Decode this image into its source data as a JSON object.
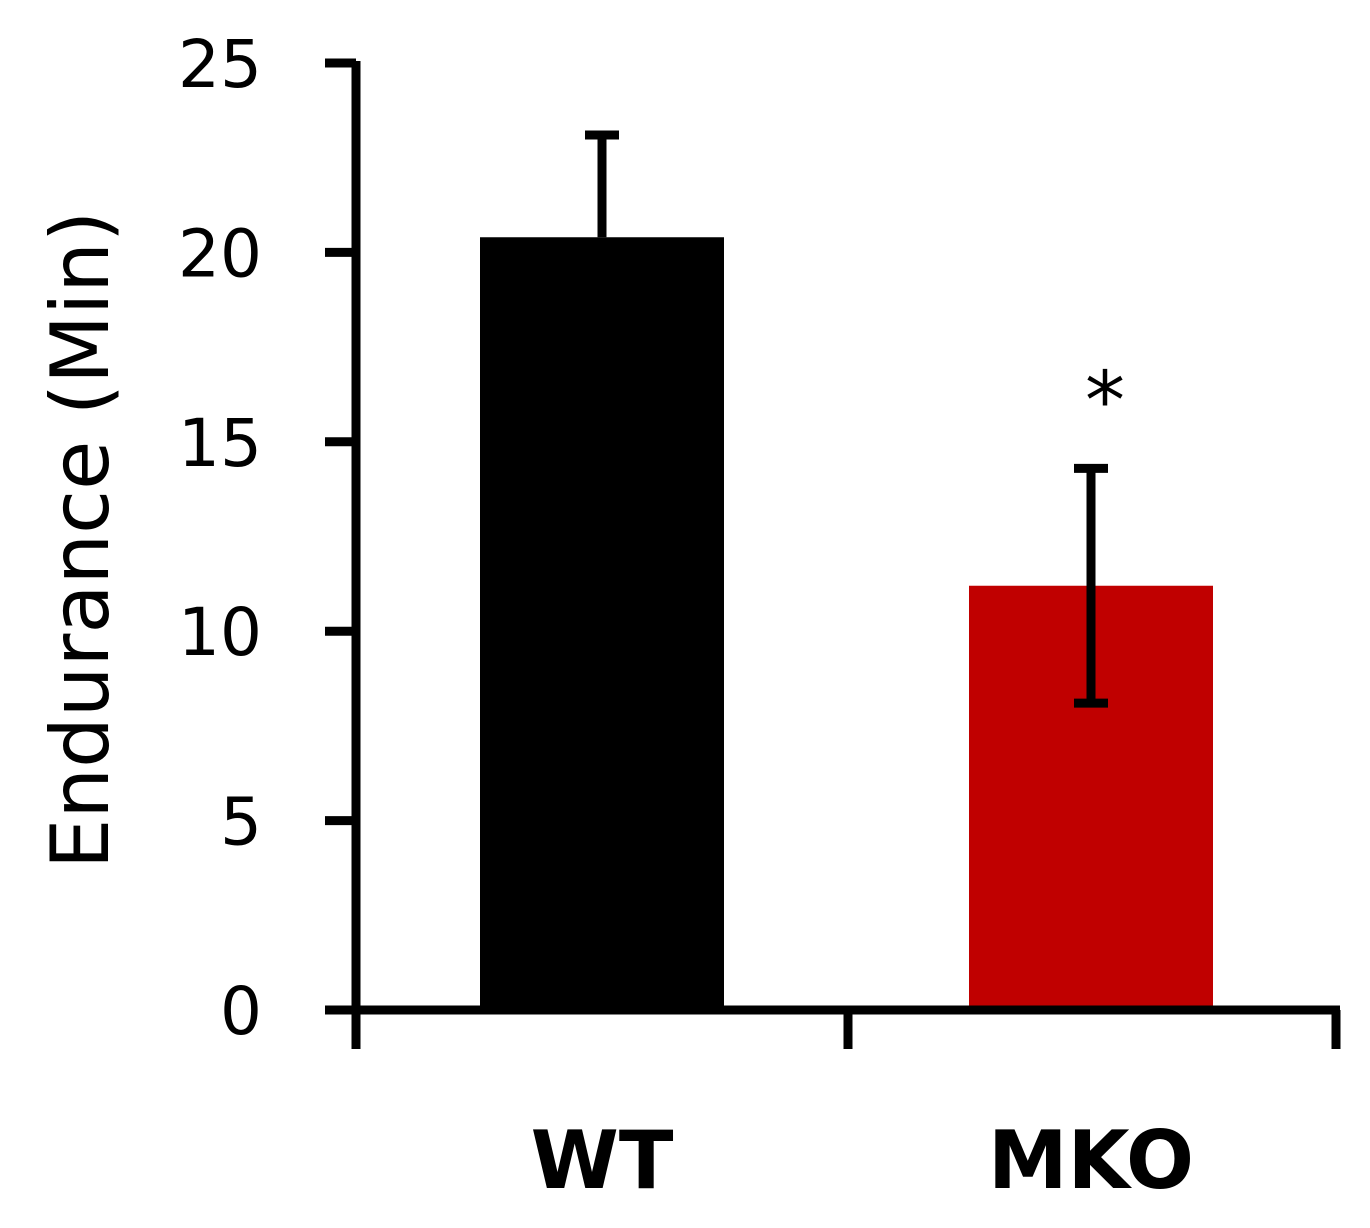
{
  "chart_data": {
    "type": "bar",
    "categories": [
      "WT",
      "MKO"
    ],
    "values": [
      20.4,
      11.2
    ],
    "errors": [
      2.7,
      3.1
    ],
    "annotations": [
      "",
      "*"
    ],
    "title": "",
    "xlabel": "",
    "ylabel": "Endurance (Min)",
    "ylim": [
      0,
      25
    ],
    "yticks": [
      0,
      5,
      10,
      15,
      20,
      25
    ],
    "ytick_labels": [
      "0",
      "5",
      "10",
      "15",
      "20",
      "25"
    ],
    "grid": false,
    "legend": "none",
    "colors": [
      "#000000",
      "#c00000"
    ]
  }
}
